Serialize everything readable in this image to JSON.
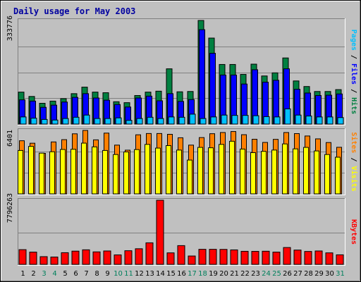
{
  "chart_data": {
    "title": "Daily usage for May 2003",
    "type": "bar",
    "categories": [
      "1",
      "2",
      "3",
      "4",
      "5",
      "6",
      "7",
      "8",
      "9",
      "10",
      "11",
      "12",
      "13",
      "14",
      "15",
      "16",
      "17",
      "18",
      "19",
      "20",
      "21",
      "22",
      "23",
      "24",
      "25",
      "26",
      "27",
      "28",
      "29",
      "30",
      "31"
    ],
    "weekend_days": [
      "3",
      "4",
      "10",
      "11",
      "17",
      "18",
      "24",
      "25",
      "31"
    ],
    "colors": {
      "background": "#c0c0c0",
      "plot": "#c0c0c0",
      "title": "#0000a0",
      "hits": "#008040",
      "files": "#0000ff",
      "pages": "#00c0ff",
      "visits": "#ffff00",
      "sites": "#ff8000",
      "kbytes": "#ff0000",
      "weekday_label": "#000000",
      "weekend_label": "#00805c"
    },
    "panels": [
      {
        "id": "hits-files-pages",
        "max_label": "333776",
        "ymax": 333776,
        "series": [
          {
            "name": "Hits",
            "values": [
              103000,
              89000,
              67000,
              74000,
              82000,
              98000,
              119000,
              103000,
              101000,
              72000,
              69000,
              92000,
              103000,
              106000,
              178000,
              104000,
              105000,
              333776,
              277000,
              192000,
              192000,
              160000,
              193000,
              155000,
              165000,
              213000,
              139000,
              121000,
              105000,
              105000,
              111000
            ]
          },
          {
            "name": "Files",
            "values": [
              78000,
              74000,
              54000,
              61000,
              71000,
              86000,
              98000,
              84000,
              77000,
              63000,
              55000,
              84000,
              90000,
              75000,
              98000,
              73000,
              79000,
              304000,
              228000,
              158000,
              158000,
              129000,
              175000,
              135000,
              141000,
              178000,
              112000,
              100000,
              92000,
              93000,
              97000
            ]
          },
          {
            "name": "Pages",
            "values": [
              23000,
              19000,
              15000,
              13000,
              18000,
              22000,
              29000,
              18000,
              18000,
              20000,
              12000,
              18000,
              22000,
              18000,
              23000,
              22000,
              32000,
              18000,
              23000,
              29000,
              28000,
              28000,
              27000,
              24000,
              23000,
              49000,
              29000,
              26000,
              23000,
              23000,
              21000
            ]
          }
        ]
      },
      {
        "id": "visits-sites",
        "max_label": "6401",
        "ymax": 6401,
        "series": [
          {
            "name": "Visits",
            "values": [
              4380,
              4790,
              4110,
              4250,
              4480,
              4500,
              5120,
              4740,
              4380,
              3970,
              4230,
              4470,
              4990,
              4620,
              4870,
              4420,
              3410,
              4690,
              4650,
              4990,
              5310,
              4520,
              4160,
              4290,
              4420,
              5040,
              4540,
              4690,
              4330,
              3970,
              3700
            ]
          },
          {
            "name": "Sites",
            "values": [
              5360,
              5110,
              4090,
              5240,
              5470,
              6060,
              6400,
              5450,
              6130,
              4920,
              4410,
              5960,
              6090,
              6090,
              6010,
              5660,
              4920,
              5680,
              6070,
              6190,
              6290,
              5970,
              5510,
              5190,
              5500,
              6190,
              6080,
              5840,
              5550,
              5180,
              4700
            ]
          }
        ]
      },
      {
        "id": "kbytes",
        "max_label": "7796263",
        "ymax": 7796263,
        "series": [
          {
            "name": "KBytes",
            "values": [
              1790000,
              1490000,
              940000,
              890000,
              1420000,
              1610000,
              1770000,
              1520000,
              1630000,
              1150000,
              1660000,
              1900000,
              2620000,
              7796263,
              1400000,
              2280000,
              1020000,
              1830000,
              1830000,
              1820000,
              1760000,
              1590000,
              1580000,
              1600000,
              1490000,
              2050000,
              1740000,
              1570000,
              1630000,
              1400000,
              1160000
            ]
          }
        ]
      }
    ],
    "right_labels": {
      "top": [
        {
          "text": "Pages",
          "color": "#00c0ff"
        },
        {
          "text": " / ",
          "color": "#000000"
        },
        {
          "text": "Files",
          "color": "#0000ff"
        },
        {
          "text": " / ",
          "color": "#000000"
        },
        {
          "text": "Hits",
          "color": "#008040"
        }
      ],
      "middle": [
        {
          "text": "Sites",
          "color": "#ff8000"
        },
        {
          "text": " / ",
          "color": "#000000"
        },
        {
          "text": "Visits",
          "color": "#ffff00"
        }
      ],
      "bottom": [
        {
          "text": "KBytes",
          "color": "#ff0000"
        }
      ]
    }
  }
}
